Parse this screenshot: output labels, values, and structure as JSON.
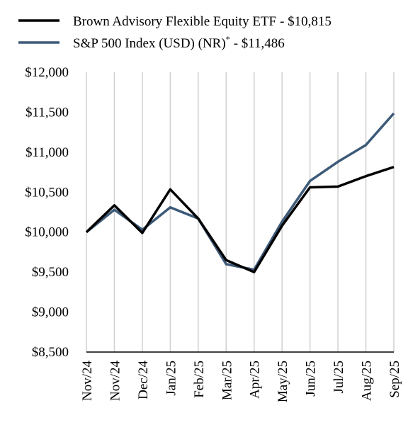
{
  "chart_data": {
    "type": "line",
    "categories": [
      "Nov/24",
      "Nov/24",
      "Dec/24",
      "Jan/25",
      "Feb/25",
      "Mar/25",
      "Apr/25",
      "May/25",
      "Jun/25",
      "Jul/25",
      "Aug/25",
      "Sep/25"
    ],
    "series": [
      {
        "name": "Brown Advisory Flexible Equity ETF",
        "name_value": "- $10,815",
        "color": "#000000",
        "values": [
          10000,
          10335,
          9990,
          10535,
          10170,
          9650,
          9500,
          10080,
          10560,
          10570,
          10700,
          10815
        ]
      },
      {
        "name": "S&P 500 Index (USD) (NR)",
        "name_mark": "*",
        "name_value": "- $11,486",
        "color": "#3d5a78",
        "values": [
          10000,
          10280,
          10030,
          10310,
          10170,
          9600,
          9530,
          10130,
          10640,
          10880,
          11090,
          11486
        ]
      }
    ],
    "ylim": [
      8500,
      12000
    ],
    "yticks": [
      {
        "value": 8500,
        "label": "$8,500"
      },
      {
        "value": 9000,
        "label": "$9,000"
      },
      {
        "value": 9500,
        "label": "$9,500"
      },
      {
        "value": 10000,
        "label": "$10,000"
      },
      {
        "value": 10500,
        "label": "$10,500"
      },
      {
        "value": 11000,
        "label": "$11,000"
      },
      {
        "value": 11500,
        "label": "$11,500"
      },
      {
        "value": 12000,
        "label": "$12,000"
      }
    ],
    "grid": true
  }
}
